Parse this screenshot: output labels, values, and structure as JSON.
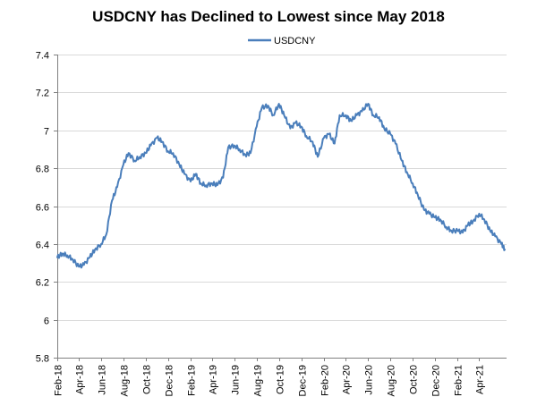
{
  "chart_data": {
    "type": "line",
    "title": "USDCNY has Declined to Lowest since May 2018",
    "xlabel": "",
    "ylabel": "",
    "ylim": [
      5.8,
      7.4
    ],
    "yticks": [
      "5.8",
      "6",
      "6.2",
      "6.4",
      "6.6",
      "6.8",
      "7",
      "7.2",
      "7.4"
    ],
    "x_range": [
      "2018-02-01",
      "2021-06-15"
    ],
    "xticks": [
      "Feb-18",
      "Apr-18",
      "Jun-18",
      "Aug-18",
      "Oct-18",
      "Dec-18",
      "Feb-19",
      "Apr-19",
      "Jun-19",
      "Aug-19",
      "Oct-19",
      "Dec-19",
      "Feb-20",
      "Apr-20",
      "Jun-20",
      "Aug-20",
      "Oct-20",
      "Dec-20",
      "Feb-21",
      "Apr-21"
    ],
    "grid": "horizontal",
    "legend_position": "top-center",
    "series": [
      {
        "name": "USDCNY",
        "color": "#4a7ebb",
        "points": [
          [
            "2018-02-01",
            6.33
          ],
          [
            "2018-02-15",
            6.35
          ],
          [
            "2018-03-01",
            6.34
          ],
          [
            "2018-03-15",
            6.32
          ],
          [
            "2018-04-01",
            6.28
          ],
          [
            "2018-04-15",
            6.29
          ],
          [
            "2018-05-01",
            6.33
          ],
          [
            "2018-05-15",
            6.37
          ],
          [
            "2018-06-01",
            6.4
          ],
          [
            "2018-06-15",
            6.45
          ],
          [
            "2018-07-01",
            6.63
          ],
          [
            "2018-07-15",
            6.7
          ],
          [
            "2018-08-01",
            6.82
          ],
          [
            "2018-08-15",
            6.88
          ],
          [
            "2018-09-01",
            6.84
          ],
          [
            "2018-09-15",
            6.86
          ],
          [
            "2018-10-01",
            6.88
          ],
          [
            "2018-10-15",
            6.92
          ],
          [
            "2018-11-01",
            6.96
          ],
          [
            "2018-11-15",
            6.94
          ],
          [
            "2018-12-01",
            6.89
          ],
          [
            "2018-12-15",
            6.88
          ],
          [
            "2019-01-01",
            6.82
          ],
          [
            "2019-01-15",
            6.77
          ],
          [
            "2019-02-01",
            6.73
          ],
          [
            "2019-02-15",
            6.77
          ],
          [
            "2019-03-01",
            6.72
          ],
          [
            "2019-03-15",
            6.71
          ],
          [
            "2019-04-01",
            6.72
          ],
          [
            "2019-04-15",
            6.71
          ],
          [
            "2019-05-01",
            6.75
          ],
          [
            "2019-05-15",
            6.91
          ],
          [
            "2019-06-01",
            6.92
          ],
          [
            "2019-06-15",
            6.9
          ],
          [
            "2019-07-01",
            6.87
          ],
          [
            "2019-07-15",
            6.88
          ],
          [
            "2019-08-01",
            7.02
          ],
          [
            "2019-08-15",
            7.12
          ],
          [
            "2019-09-01",
            7.13
          ],
          [
            "2019-09-15",
            7.08
          ],
          [
            "2019-10-01",
            7.14
          ],
          [
            "2019-10-15",
            7.08
          ],
          [
            "2019-11-01",
            7.01
          ],
          [
            "2019-11-15",
            7.04
          ],
          [
            "2019-12-01",
            7.02
          ],
          [
            "2019-12-15",
            6.97
          ],
          [
            "2020-01-01",
            6.94
          ],
          [
            "2020-01-15",
            6.86
          ],
          [
            "2020-02-01",
            6.96
          ],
          [
            "2020-02-15",
            6.98
          ],
          [
            "2020-03-01",
            6.93
          ],
          [
            "2020-03-15",
            7.08
          ],
          [
            "2020-04-01",
            7.08
          ],
          [
            "2020-04-15",
            7.05
          ],
          [
            "2020-05-01",
            7.08
          ],
          [
            "2020-05-15",
            7.1
          ],
          [
            "2020-06-01",
            7.14
          ],
          [
            "2020-06-15",
            7.08
          ],
          [
            "2020-07-01",
            7.07
          ],
          [
            "2020-07-15",
            7.01
          ],
          [
            "2020-08-01",
            6.98
          ],
          [
            "2020-08-15",
            6.93
          ],
          [
            "2020-09-01",
            6.84
          ],
          [
            "2020-09-15",
            6.78
          ],
          [
            "2020-10-01",
            6.72
          ],
          [
            "2020-10-15",
            6.66
          ],
          [
            "2020-11-01",
            6.58
          ],
          [
            "2020-11-15",
            6.56
          ],
          [
            "2020-12-01",
            6.54
          ],
          [
            "2020-12-15",
            6.53
          ],
          [
            "2021-01-01",
            6.49
          ],
          [
            "2021-01-15",
            6.47
          ],
          [
            "2021-02-01",
            6.47
          ],
          [
            "2021-02-15",
            6.46
          ],
          [
            "2021-03-01",
            6.5
          ],
          [
            "2021-03-15",
            6.52
          ],
          [
            "2021-04-01",
            6.56
          ],
          [
            "2021-04-15",
            6.53
          ],
          [
            "2021-05-01",
            6.47
          ],
          [
            "2021-05-15",
            6.44
          ],
          [
            "2021-06-01",
            6.4
          ],
          [
            "2021-06-10",
            6.37
          ]
        ]
      }
    ]
  }
}
